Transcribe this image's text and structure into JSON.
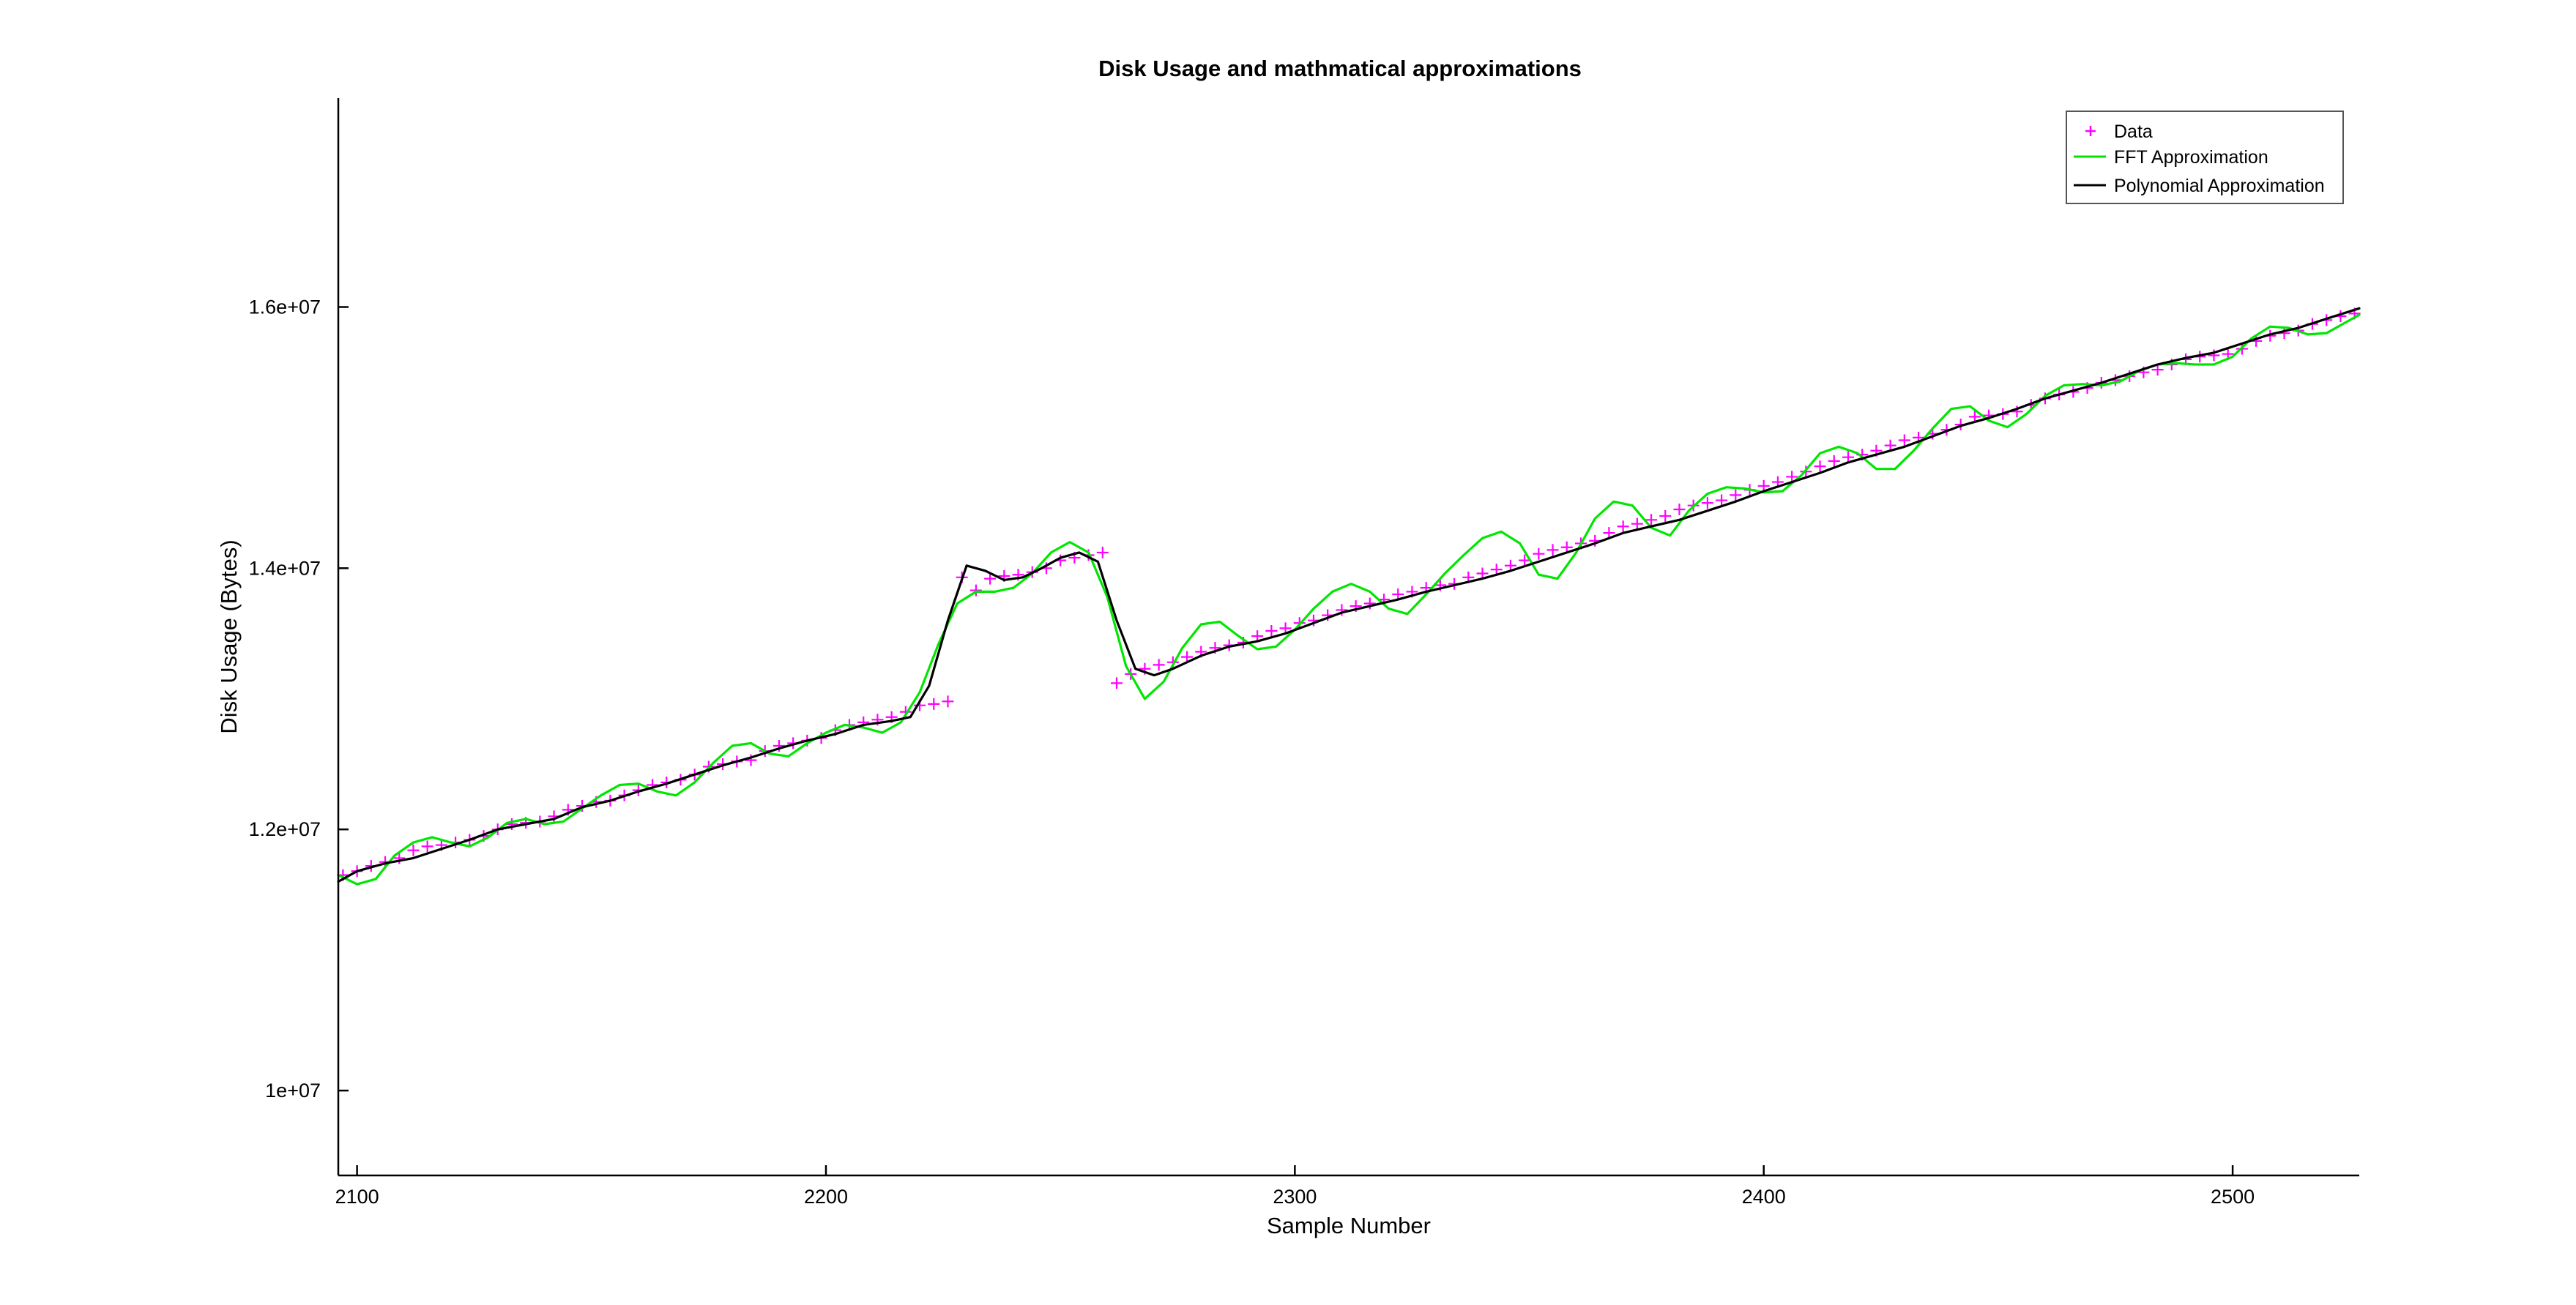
{
  "chart_data": {
    "type": "line",
    "title": "Disk Usage and mathmatical approximations",
    "xlabel": "Sample Number",
    "ylabel": "Disk Usage (Bytes)",
    "xlim": [
      2096,
      2527
    ],
    "ylim": [
      9350000,
      17600000
    ],
    "xticks": [
      2100,
      2200,
      2300,
      2400,
      2500
    ],
    "xtick_labels": [
      "2100",
      "2200",
      "2300",
      "2400",
      "2500"
    ],
    "yticks": [
      10000000,
      12000000,
      14000000,
      16000000
    ],
    "ytick_labels": [
      "1e+07",
      "1.2e+07",
      "1.4e+07",
      "1.6e+07"
    ],
    "legend": {
      "position": "top-right",
      "entries": [
        {
          "label": "Data",
          "marker": "+",
          "color": "#ff00ff"
        },
        {
          "label": "FFT Approximation",
          "line": "solid",
          "color": "#00e600"
        },
        {
          "label": "Polynomial Approximation",
          "line": "solid",
          "color": "#000000"
        }
      ]
    },
    "series": [
      {
        "name": "Data",
        "style": "marker",
        "color": "#ff00ff",
        "x": [
          2097,
          2100,
          2103,
          2106,
          2109,
          2112,
          2115,
          2118,
          2121,
          2124,
          2127,
          2130,
          2133,
          2136,
          2139,
          2142,
          2145,
          2148,
          2151,
          2154,
          2157,
          2160,
          2163,
          2166,
          2169,
          2172,
          2175,
          2178,
          2181,
          2184,
          2187,
          2190,
          2193,
          2196,
          2199,
          2202,
          2205,
          2208,
          2211,
          2214,
          2217,
          2220,
          2223,
          2226,
          2229,
          2232,
          2235,
          2238,
          2241,
          2244,
          2247,
          2250,
          2253,
          2256,
          2259,
          2262,
          2265,
          2268,
          2271,
          2274,
          2277,
          2280,
          2283,
          2286,
          2289,
          2292,
          2295,
          2298,
          2301,
          2304,
          2307,
          2310,
          2313,
          2316,
          2319,
          2322,
          2325,
          2328,
          2331,
          2334,
          2337,
          2340,
          2343,
          2346,
          2349,
          2352,
          2355,
          2358,
          2361,
          2364,
          2367,
          2370,
          2373,
          2376,
          2379,
          2382,
          2385,
          2388,
          2391,
          2394,
          2397,
          2400,
          2403,
          2406,
          2409,
          2412,
          2415,
          2418,
          2421,
          2424,
          2427,
          2430,
          2433,
          2436,
          2439,
          2442,
          2445,
          2448,
          2451,
          2454,
          2457,
          2460,
          2463,
          2466,
          2469,
          2472,
          2475,
          2478,
          2481,
          2484,
          2487,
          2490,
          2493,
          2496,
          2499,
          2502,
          2505,
          2508,
          2511,
          2514,
          2517,
          2520,
          2523,
          2526
        ],
        "values": [
          11650000,
          11680000,
          11720000,
          11750000,
          11780000,
          11840000,
          11870000,
          11880000,
          11900000,
          11920000,
          11950000,
          12000000,
          12040000,
          12050000,
          12060000,
          12100000,
          12150000,
          12180000,
          12210000,
          12220000,
          12260000,
          12300000,
          12340000,
          12360000,
          12380000,
          12420000,
          12480000,
          12500000,
          12520000,
          12530000,
          12600000,
          12640000,
          12660000,
          12680000,
          12700000,
          12760000,
          12800000,
          12820000,
          12840000,
          12860000,
          12900000,
          12950000,
          12960000,
          12980000,
          13930000,
          13830000,
          13920000,
          13940000,
          13950000,
          13970000,
          14000000,
          14060000,
          14080000,
          14100000,
          14120000,
          13120000,
          13190000,
          13230000,
          13260000,
          13280000,
          13320000,
          13360000,
          13390000,
          13410000,
          13430000,
          13480000,
          13520000,
          13540000,
          13580000,
          13600000,
          13640000,
          13680000,
          13710000,
          13730000,
          13760000,
          13800000,
          13820000,
          13850000,
          13870000,
          13880000,
          13930000,
          13960000,
          13990000,
          14020000,
          14060000,
          14110000,
          14140000,
          14160000,
          14190000,
          14210000,
          14270000,
          14320000,
          14340000,
          14370000,
          14400000,
          14450000,
          14480000,
          14500000,
          14520000,
          14560000,
          14600000,
          14630000,
          14660000,
          14700000,
          14740000,
          14780000,
          14820000,
          14850000,
          14870000,
          14900000,
          14940000,
          14980000,
          15000000,
          15030000,
          15060000,
          15100000,
          15160000,
          15170000,
          15180000,
          15200000,
          15250000,
          15300000,
          15330000,
          15350000,
          15380000,
          15420000,
          15440000,
          15470000,
          15500000,
          15520000,
          15560000,
          15600000,
          15620000,
          15630000,
          15640000,
          15680000,
          15740000,
          15780000,
          15800000,
          15820000,
          15870000,
          15900000,
          15930000,
          15950000
        ]
      },
      {
        "name": "FFT Approximation",
        "style": "line",
        "color": "#00e600",
        "x": [
          2096,
          2100,
          2104,
          2108,
          2112,
          2116,
          2120,
          2124,
          2128,
          2132,
          2136,
          2140,
          2144,
          2148,
          2152,
          2156,
          2160,
          2164,
          2168,
          2172,
          2176,
          2180,
          2184,
          2188,
          2192,
          2196,
          2200,
          2204,
          2208,
          2212,
          2216,
          2220,
          2224,
          2228,
          2232,
          2236,
          2240,
          2244,
          2248,
          2252,
          2256,
          2260,
          2264,
          2268,
          2272,
          2276,
          2280,
          2284,
          2288,
          2292,
          2296,
          2300,
          2304,
          2308,
          2312,
          2316,
          2320,
          2324,
          2328,
          2332,
          2336,
          2340,
          2344,
          2348,
          2352,
          2356,
          2360,
          2364,
          2368,
          2372,
          2376,
          2380,
          2384,
          2388,
          2392,
          2396,
          2400,
          2404,
          2408,
          2412,
          2416,
          2420,
          2424,
          2428,
          2432,
          2436,
          2440,
          2444,
          2448,
          2452,
          2456,
          2460,
          2464,
          2468,
          2472,
          2476,
          2480,
          2484,
          2488,
          2492,
          2496,
          2500,
          2504,
          2508,
          2512,
          2516,
          2520,
          2524,
          2527
        ],
        "values": [
          11650000,
          11580000,
          11620000,
          11800000,
          11900000,
          11940000,
          11900000,
          11870000,
          11940000,
          12050000,
          12080000,
          12040000,
          12060000,
          12160000,
          12260000,
          12340000,
          12350000,
          12290000,
          12260000,
          12360000,
          12510000,
          12640000,
          12660000,
          12580000,
          12560000,
          12660000,
          12740000,
          12800000,
          12780000,
          12740000,
          12820000,
          13050000,
          13420000,
          13730000,
          13820000,
          13820000,
          13850000,
          13960000,
          14120000,
          14200000,
          14120000,
          13780000,
          13250000,
          13000000,
          13130000,
          13390000,
          13570000,
          13590000,
          13480000,
          13380000,
          13400000,
          13530000,
          13690000,
          13820000,
          13880000,
          13820000,
          13690000,
          13650000,
          13800000,
          13960000,
          14100000,
          14230000,
          14280000,
          14190000,
          13950000,
          13920000,
          14120000,
          14380000,
          14510000,
          14480000,
          14310000,
          14250000,
          14440000,
          14570000,
          14620000,
          14610000,
          14580000,
          14590000,
          14710000,
          14880000,
          14930000,
          14880000,
          14760000,
          14760000,
          14900000,
          15070000,
          15220000,
          15240000,
          15130000,
          15080000,
          15180000,
          15320000,
          15400000,
          15410000,
          15400000,
          15430000,
          15510000,
          15560000,
          15570000,
          15560000,
          15560000,
          15620000,
          15760000,
          15850000,
          15840000,
          15790000,
          15800000,
          15880000,
          15940000
        ]
      },
      {
        "name": "Polynomial Approximation",
        "style": "line",
        "color": "#000000",
        "x": [
          2096,
          2100,
          2106,
          2112,
          2118,
          2124,
          2130,
          2136,
          2142,
          2148,
          2154,
          2160,
          2166,
          2172,
          2178,
          2184,
          2190,
          2196,
          2202,
          2208,
          2214,
          2218,
          2222,
          2226,
          2230,
          2234,
          2238,
          2242,
          2246,
          2250,
          2254,
          2258,
          2262,
          2266,
          2270,
          2274,
          2280,
          2286,
          2292,
          2298,
          2304,
          2310,
          2316,
          2322,
          2328,
          2334,
          2340,
          2346,
          2352,
          2358,
          2364,
          2370,
          2376,
          2382,
          2388,
          2394,
          2400,
          2406,
          2412,
          2418,
          2424,
          2430,
          2436,
          2442,
          2448,
          2454,
          2460,
          2466,
          2472,
          2478,
          2484,
          2490,
          2496,
          2502,
          2508,
          2514,
          2520,
          2527
        ],
        "values": [
          11600000,
          11680000,
          11740000,
          11780000,
          11850000,
          11920000,
          12000000,
          12040000,
          12080000,
          12170000,
          12220000,
          12290000,
          12350000,
          12420000,
          12490000,
          12550000,
          12620000,
          12680000,
          12730000,
          12800000,
          12830000,
          12860000,
          13100000,
          13600000,
          14020000,
          13980000,
          13910000,
          13930000,
          14000000,
          14080000,
          14120000,
          14050000,
          13600000,
          13230000,
          13180000,
          13230000,
          13330000,
          13400000,
          13440000,
          13500000,
          13580000,
          13660000,
          13710000,
          13760000,
          13820000,
          13870000,
          13920000,
          13980000,
          14050000,
          14120000,
          14190000,
          14270000,
          14320000,
          14370000,
          14440000,
          14510000,
          14590000,
          14660000,
          14730000,
          14810000,
          14870000,
          14930000,
          15010000,
          15090000,
          15150000,
          15220000,
          15300000,
          15360000,
          15420000,
          15490000,
          15560000,
          15610000,
          15650000,
          15720000,
          15790000,
          15840000,
          15910000,
          15990000
        ]
      }
    ]
  }
}
